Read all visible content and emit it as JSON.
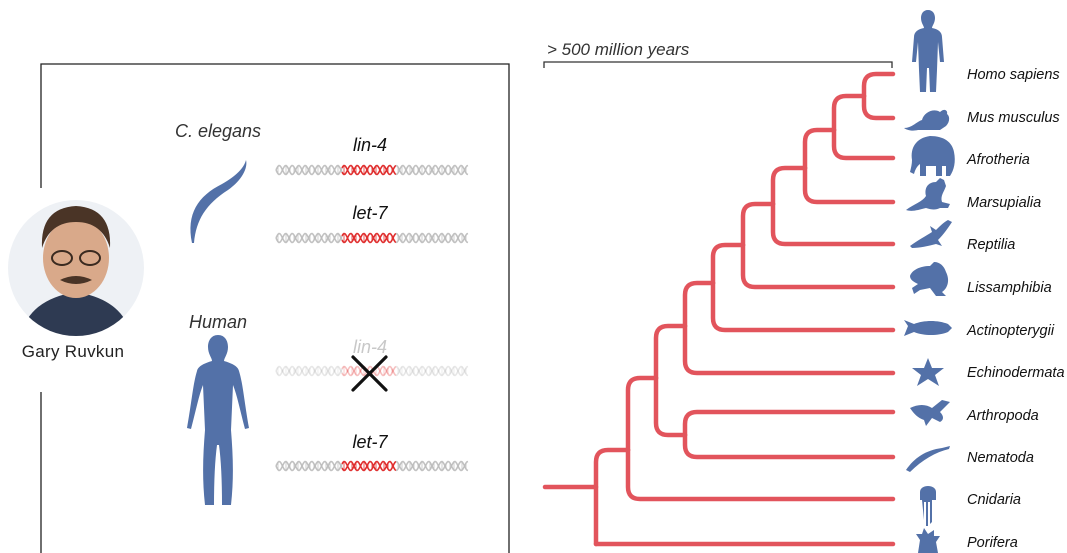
{
  "colors": {
    "tree": "#e2545c",
    "silhouette": "#5371a8",
    "dna_red": "#e03030",
    "dna_gray": "#bbbbbb",
    "frame": "#222222",
    "cross": "#111111"
  },
  "person": {
    "name": "Gary Ruvkun"
  },
  "species": {
    "worm": {
      "label": "C. elegans",
      "icon": "worm-icon"
    },
    "human": {
      "label": "Human",
      "icon": "human-icon"
    }
  },
  "genes": {
    "worm": [
      {
        "label": "lin-4"
      },
      {
        "label": "let-7"
      }
    ],
    "human": [
      {
        "label": "lin-4",
        "absent": true
      },
      {
        "label": "let-7"
      }
    ]
  },
  "timescale": {
    "label": "> 500 million years"
  },
  "tree": {
    "taxa": [
      {
        "label": "Homo sapiens",
        "icon": "human-icon"
      },
      {
        "label": "Mus musculus",
        "icon": "mouse-icon"
      },
      {
        "label": "Afrotheria",
        "icon": "elephant-icon"
      },
      {
        "label": "Marsupialia",
        "icon": "kangaroo-icon"
      },
      {
        "label": "Reptilia",
        "icon": "lizard-icon"
      },
      {
        "label": "Lissamphibia",
        "icon": "frog-icon"
      },
      {
        "label": "Actinopterygii",
        "icon": "fish-icon"
      },
      {
        "label": "Echinodermata",
        "icon": "starfish-icon"
      },
      {
        "label": "Arthropoda",
        "icon": "fly-icon"
      },
      {
        "label": "Nematoda",
        "icon": "worm-icon"
      },
      {
        "label": "Cnidaria",
        "icon": "jellyfish-icon"
      },
      {
        "label": "Porifera",
        "icon": "sponge-icon"
      }
    ]
  }
}
